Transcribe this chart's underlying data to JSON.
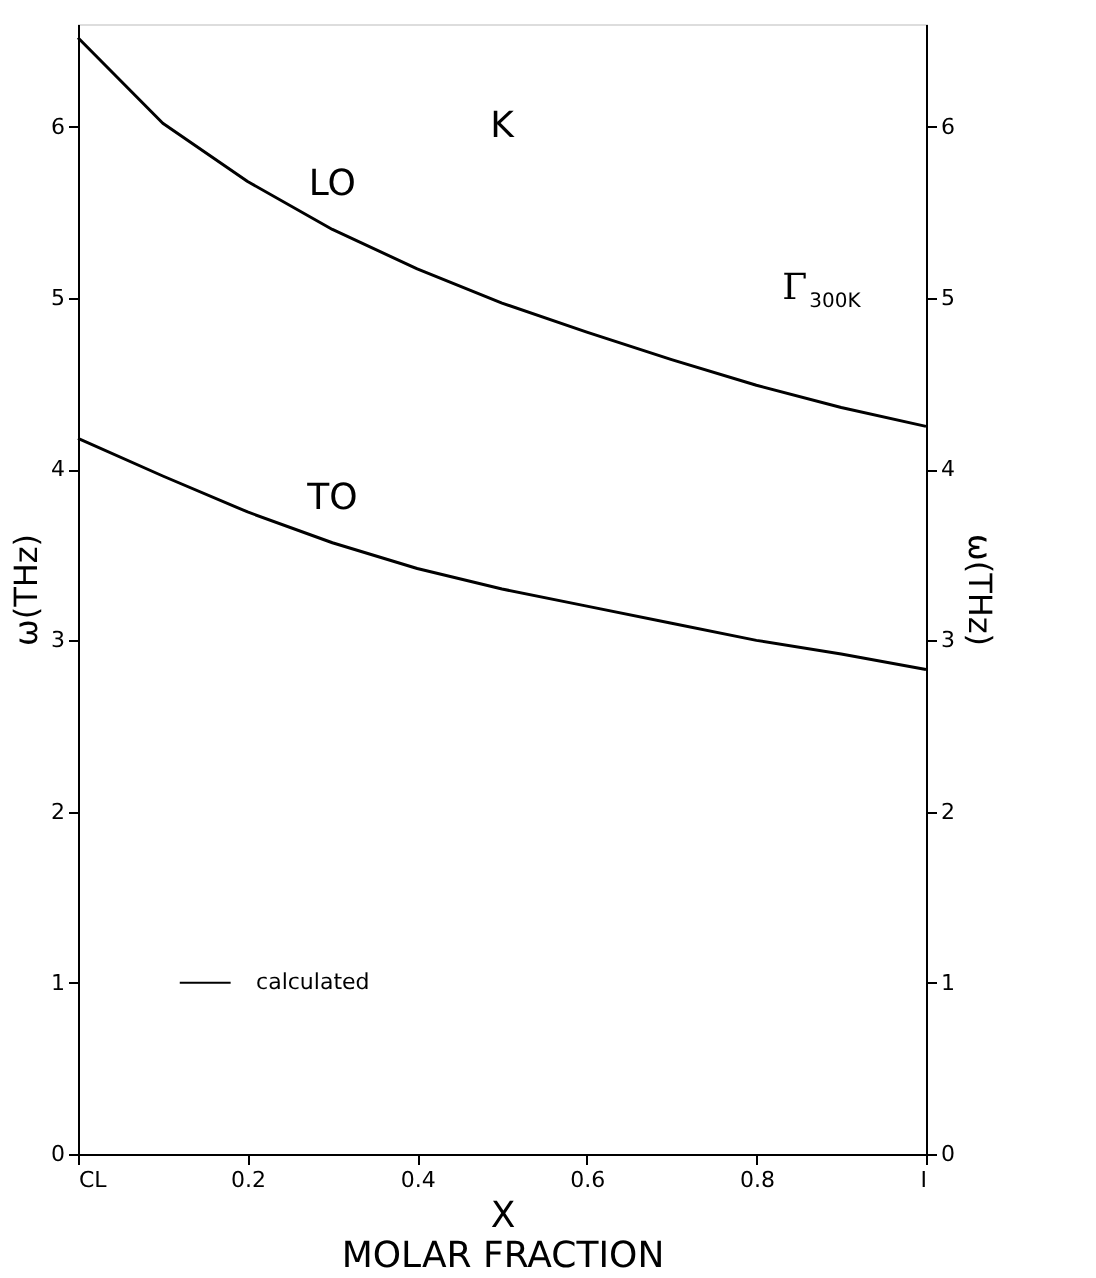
{
  "chart_data": {
    "type": "line",
    "x": [
      0,
      0.1,
      0.2,
      0.3,
      0.4,
      0.5,
      0.6,
      0.7,
      0.8,
      0.9,
      1
    ],
    "series": [
      {
        "name": "LO",
        "color": "#000000",
        "values": [
          6.52,
          6.02,
          5.68,
          5.4,
          5.17,
          4.97,
          4.8,
          4.64,
          4.49,
          4.36,
          4.25
        ]
      },
      {
        "name": "TO",
        "color": "#000000",
        "values": [
          4.18,
          3.96,
          3.75,
          3.57,
          3.42,
          3.3,
          3.2,
          3.1,
          3.0,
          2.92,
          2.83
        ]
      }
    ],
    "xlabel": "X\nMOLAR FRACTION",
    "ylabel": "ω(THz)",
    "y2label": "ω(THz)",
    "xlim": [
      0,
      1
    ],
    "xticks": [
      {
        "value": 0,
        "label": "CL"
      },
      0.2,
      0.4,
      0.6,
      0.8,
      {
        "value": 1,
        "label": "I"
      }
    ],
    "ylim": [
      0,
      6.6
    ],
    "yticks": [
      0,
      1,
      2,
      3,
      4,
      5,
      6
    ],
    "y2lim": [
      0,
      6.6
    ],
    "y2ticks": [
      0,
      1,
      2,
      3,
      4,
      5,
      6
    ],
    "annotations": [
      "K",
      "Γ$_{300K}$",
      "calculated"
    ],
    "grid": false,
    "marker": "none",
    "line_style": "solid"
  }
}
